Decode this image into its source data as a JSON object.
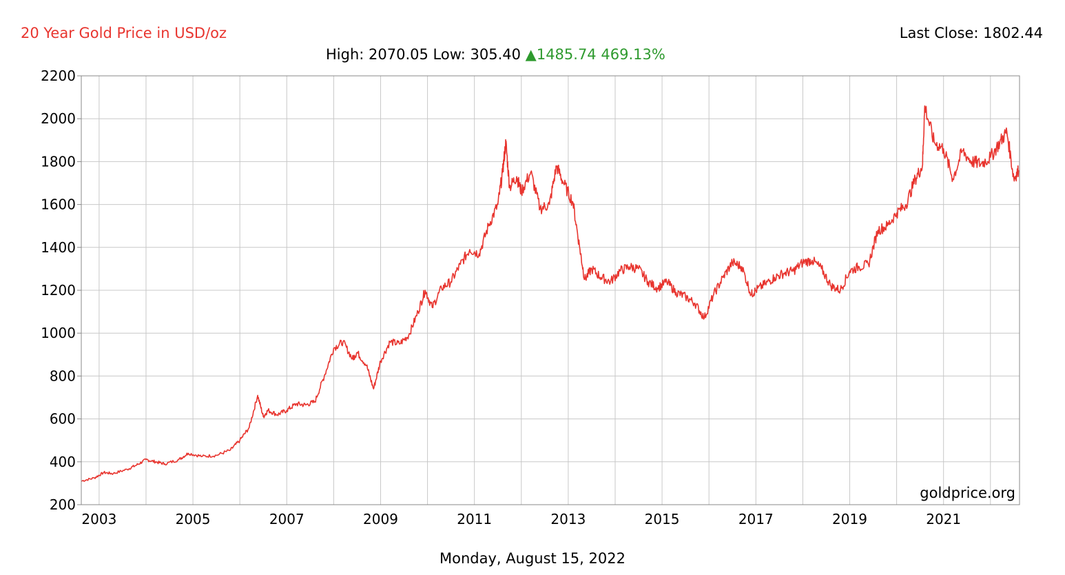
{
  "header": {
    "title": "20 Year Gold Price in USD/oz",
    "last_close": "Last Close: 1802.44",
    "high": "High: 2070.05",
    "low": "Low: 305.40",
    "change_arrow": "▲",
    "change_abs": "1485.74",
    "change_pct": "469.13%"
  },
  "footer": {
    "date": "Monday, August 15, 2022"
  },
  "watermark": "goldprice.org",
  "colors": {
    "line": "#e8352f",
    "title": "#e8352f",
    "up": "#2e9a2e",
    "grid": "#c8c8c8"
  },
  "chart_data": {
    "type": "line",
    "title": "20 Year Gold Price in USD/oz",
    "xlim": [
      2002.62,
      2022.62
    ],
    "ylim": [
      200,
      2200
    ],
    "y_ticks": [
      200,
      400,
      600,
      800,
      1000,
      1200,
      1400,
      1600,
      1800,
      2000,
      2200
    ],
    "x_ticks": [
      2003,
      2004,
      2005,
      2006,
      2007,
      2008,
      2009,
      2010,
      2011,
      2012,
      2013,
      2014,
      2015,
      2016,
      2017,
      2018,
      2019,
      2020,
      2021,
      2022
    ],
    "x_tick_labels": [
      "2003",
      "",
      "2005",
      "",
      "2007",
      "",
      "2009",
      "",
      "2011",
      "",
      "2013",
      "",
      "2015",
      "",
      "2017",
      "",
      "2019",
      "",
      "2021",
      ""
    ],
    "grid": true,
    "series": [
      {
        "x": [
          2002.62,
          2002.9,
          2003.1,
          2003.3,
          2003.6,
          2003.8,
          2004.0,
          2004.2,
          2004.4,
          2004.7,
          2004.9,
          2005.2,
          2005.5,
          2005.8,
          2006.0,
          2006.2,
          2006.38,
          2006.5,
          2006.6,
          2006.8,
          2007.0,
          2007.2,
          2007.4,
          2007.6,
          2007.8,
          2008.0,
          2008.2,
          2008.4,
          2008.5,
          2008.7,
          2008.85,
          2009.0,
          2009.2,
          2009.4,
          2009.6,
          2009.8,
          2009.95,
          2010.1,
          2010.3,
          2010.5,
          2010.7,
          2010.9,
          2011.1,
          2011.3,
          2011.5,
          2011.6,
          2011.67,
          2011.75,
          2011.9,
          2012.0,
          2012.2,
          2012.4,
          2012.6,
          2012.75,
          2012.9,
          2013.1,
          2013.25,
          2013.35,
          2013.5,
          2013.7,
          2013.9,
          2014.1,
          2014.3,
          2014.5,
          2014.7,
          2014.9,
          2015.1,
          2015.3,
          2015.5,
          2015.7,
          2015.9,
          2016.1,
          2016.3,
          2016.5,
          2016.7,
          2016.9,
          2017.0,
          2017.2,
          2017.4,
          2017.6,
          2017.8,
          2018.0,
          2018.2,
          2018.4,
          2018.6,
          2018.8,
          2019.0,
          2019.2,
          2019.4,
          2019.6,
          2019.8,
          2020.0,
          2020.2,
          2020.4,
          2020.55,
          2020.6,
          2020.8,
          2021.0,
          2021.2,
          2021.4,
          2021.6,
          2021.8,
          2022.0,
          2022.2,
          2022.35,
          2022.5,
          2022.6
        ],
        "y": [
          310,
          325,
          350,
          345,
          365,
          385,
          410,
          400,
          390,
          410,
          440,
          425,
          430,
          455,
          500,
          560,
          710,
          610,
          640,
          620,
          640,
          670,
          665,
          680,
          800,
          930,
          960,
          880,
          910,
          850,
          740,
          870,
          960,
          950,
          990,
          1100,
          1200,
          1120,
          1210,
          1240,
          1320,
          1390,
          1370,
          1500,
          1600,
          1750,
          1890,
          1680,
          1730,
          1660,
          1750,
          1580,
          1600,
          1780,
          1700,
          1610,
          1390,
          1250,
          1300,
          1260,
          1240,
          1290,
          1310,
          1300,
          1240,
          1210,
          1240,
          1190,
          1170,
          1140,
          1070,
          1180,
          1260,
          1330,
          1310,
          1180,
          1200,
          1230,
          1260,
          1280,
          1290,
          1330,
          1340,
          1300,
          1220,
          1200,
          1290,
          1310,
          1320,
          1480,
          1500,
          1560,
          1600,
          1720,
          1780,
          2060,
          1890,
          1860,
          1720,
          1850,
          1800,
          1790,
          1820,
          1890,
          1940,
          1720,
          1760
        ]
      }
    ]
  }
}
